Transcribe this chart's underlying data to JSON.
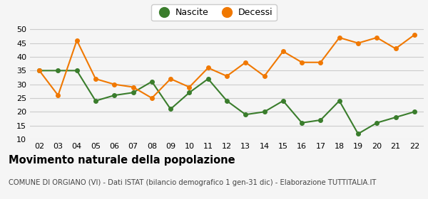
{
  "years": [
    "02",
    "03",
    "04",
    "05",
    "06",
    "07",
    "08",
    "09",
    "10",
    "11",
    "12",
    "13",
    "14",
    "15",
    "16",
    "17",
    "18",
    "19",
    "20",
    "21",
    "22"
  ],
  "nascite": [
    35,
    35,
    35,
    24,
    26,
    27,
    31,
    21,
    27,
    32,
    24,
    19,
    20,
    24,
    16,
    17,
    24,
    12,
    16,
    18,
    20
  ],
  "decessi": [
    35,
    26,
    46,
    32,
    30,
    29,
    25,
    32,
    29,
    36,
    33,
    38,
    33,
    42,
    38,
    38,
    47,
    45,
    47,
    43,
    48
  ],
  "nascite_color": "#3a7d2c",
  "decessi_color": "#f07800",
  "background_color": "#f5f5f5",
  "grid_color": "#cccccc",
  "title": "Movimento naturale della popolazione",
  "subtitle": "COMUNE DI ORGIANO (VI) - Dati ISTAT (bilancio demografico 1 gen-31 dic) - Elaborazione TUTTITALIA.IT",
  "legend_nascite": "Nascite",
  "legend_decessi": "Decessi",
  "ylim": [
    10,
    52
  ],
  "yticks": [
    10,
    15,
    20,
    25,
    30,
    35,
    40,
    45,
    50
  ],
  "title_fontsize": 10.5,
  "subtitle_fontsize": 7.2,
  "legend_fontsize": 9,
  "tick_fontsize": 8
}
